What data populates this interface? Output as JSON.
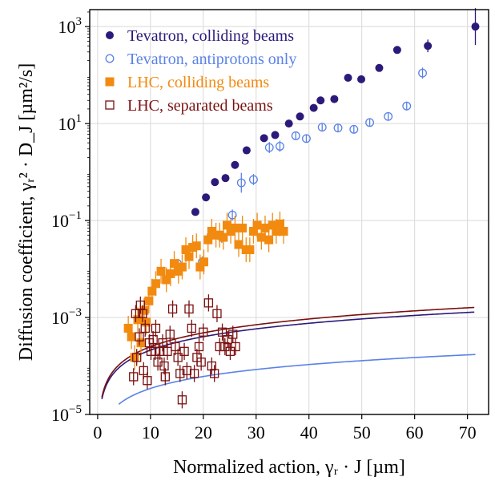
{
  "chart_data": {
    "type": "scatter",
    "xlabel": "Normalized action, γᵣ · J [µm]",
    "ylabel": "Diffusion coefficient, γᵣ² · D_J [µm²/s]",
    "xlim": [
      -1.5,
      74
    ],
    "ylim_log10": [
      -5,
      3.35
    ],
    "yscale": "log",
    "grid": true,
    "legend_position": "top-left",
    "x_ticks": [
      0,
      10,
      20,
      30,
      40,
      50,
      60,
      70
    ],
    "x_tick_labels": [
      "0",
      "10",
      "20",
      "30",
      "40",
      "50",
      "60",
      "70"
    ],
    "y_ticks_log10": [
      -5,
      -3,
      -1,
      1,
      3
    ],
    "y_tick_labels": [
      {
        "base": "10",
        "exp": "−5"
      },
      {
        "base": "10",
        "exp": "−3"
      },
      {
        "base": "10",
        "exp": "−1"
      },
      {
        "base": "10",
        "exp": "1"
      },
      {
        "base": "10",
        "exp": "3"
      }
    ],
    "series": [
      {
        "name": "Tevatron, colliding beams",
        "color": "#2c1a7a",
        "marker": "filled-circle",
        "points": [
          [
            18.5,
            0.15
          ],
          [
            20.5,
            0.3
          ],
          [
            22.2,
            0.62
          ],
          [
            24.2,
            0.75
          ],
          [
            26.0,
            1.4
          ],
          [
            28.2,
            2.8
          ],
          [
            31.5,
            5.0
          ],
          [
            33.6,
            5.8
          ],
          [
            36.2,
            10
          ],
          [
            38.3,
            14
          ],
          [
            40.9,
            21
          ],
          [
            42.2,
            30
          ],
          [
            44.8,
            32
          ],
          [
            47.4,
            88
          ],
          [
            49.9,
            82
          ],
          [
            53.3,
            140
          ],
          [
            56.7,
            330
          ],
          [
            62.5,
            400
          ],
          [
            71.5,
            1000
          ]
        ],
        "errors_up_factor": [
          1,
          1,
          1,
          1,
          1,
          1,
          1,
          1,
          1,
          1,
          1,
          1,
          1,
          1,
          1,
          1,
          1,
          1.35,
          2.4
        ],
        "errors_down_factor": [
          1,
          1,
          1,
          1,
          1,
          1,
          1,
          1,
          1,
          1,
          1,
          1,
          1,
          1,
          1,
          1,
          1,
          1.35,
          2.4
        ]
      },
      {
        "name": "Tevatron, antiprotons only",
        "color": "#5a82e6",
        "marker": "open-circle",
        "points": [
          [
            15.1,
            0.013
          ],
          [
            19.8,
            0.014
          ],
          [
            21.5,
            0.05
          ],
          [
            23.5,
            0.045
          ],
          [
            25.5,
            0.13
          ],
          [
            27.2,
            0.6
          ],
          [
            29.5,
            0.7
          ],
          [
            32.5,
            3.2
          ],
          [
            34.5,
            3.4
          ],
          [
            37.5,
            5.6
          ],
          [
            39.5,
            4.9
          ],
          [
            42.5,
            8.4
          ],
          [
            45.5,
            8.1
          ],
          [
            48.5,
            7.6
          ],
          [
            51.5,
            10.5
          ],
          [
            55,
            14
          ],
          [
            58.5,
            23
          ],
          [
            61.5,
            110
          ]
        ],
        "errors_up_factor": [
          1,
          1.3,
          1.3,
          1.3,
          1.3,
          1.6,
          1.3,
          1.3,
          1.3,
          1.2,
          1.2,
          1.2,
          1.2,
          1.2,
          1.2,
          1.2,
          1.2,
          1.3
        ],
        "errors_down_factor": [
          1,
          1.3,
          1.3,
          1.3,
          1.3,
          1.6,
          1.3,
          1.3,
          1.3,
          1.2,
          1.2,
          1.2,
          1.2,
          1.2,
          1.2,
          1.2,
          1.2,
          1.3
        ]
      },
      {
        "name": "LHC, colliding beams",
        "color": "#f28a10",
        "marker": "filled-square",
        "points": [
          [
            5.8,
            0.0006
          ],
          [
            6.4,
            0.0004
          ],
          [
            7.0,
            0.00015
          ],
          [
            7.6,
            0.0009
          ],
          [
            8.2,
            0.0003
          ],
          [
            8.8,
            0.0014
          ],
          [
            9.2,
            0.0008
          ],
          [
            9.7,
            0.0022
          ],
          [
            10.3,
            0.0035
          ],
          [
            11.0,
            0.005
          ],
          [
            12.0,
            0.009
          ],
          [
            13.0,
            0.006
          ],
          [
            13.8,
            0.008
          ],
          [
            14.5,
            0.013
          ],
          [
            15.3,
            0.009
          ],
          [
            16.0,
            0.011
          ],
          [
            16.7,
            0.025
          ],
          [
            17.3,
            0.018
          ],
          [
            18.0,
            0.028
          ],
          [
            18.7,
            0.03
          ],
          [
            19.4,
            0.011
          ],
          [
            20.1,
            0.014
          ],
          [
            20.9,
            0.04
          ],
          [
            21.6,
            0.06
          ],
          [
            22.4,
            0.05
          ],
          [
            23.1,
            0.05
          ],
          [
            23.8,
            0.045
          ],
          [
            24.5,
            0.08
          ],
          [
            25.2,
            0.06
          ],
          [
            26.0,
            0.07
          ],
          [
            26.7,
            0.032
          ],
          [
            27.4,
            0.07
          ],
          [
            28.1,
            0.025
          ],
          [
            28.8,
            0.025
          ],
          [
            29.5,
            0.06
          ],
          [
            30.2,
            0.08
          ],
          [
            31.0,
            0.045
          ],
          [
            31.7,
            0.07
          ],
          [
            32.4,
            0.04
          ],
          [
            33.1,
            0.08
          ],
          [
            33.8,
            0.06
          ],
          [
            34.5,
            0.085
          ],
          [
            35.2,
            0.06
          ]
        ],
        "error_factor": 1.8
      },
      {
        "name": "LHC, separated beams",
        "color": "#7a1010",
        "marker": "open-square",
        "points": [
          [
            6.8,
            6e-05
          ],
          [
            7.4,
            0.00015
          ],
          [
            7.9,
            0.0004
          ],
          [
            8.1,
            0.0018
          ],
          [
            8.5,
            0.0012
          ],
          [
            9.0,
            0.0006
          ],
          [
            9.4,
            5e-05
          ],
          [
            9.8,
            0.0003
          ],
          [
            10.1,
            0.0002
          ],
          [
            10.5,
            0.00035
          ],
          [
            11.0,
            0.0006
          ],
          [
            11.4,
            0.00012
          ],
          [
            11.8,
            0.0002
          ],
          [
            12.3,
            0.0003
          ],
          [
            12.8,
            6e-05
          ],
          [
            13.2,
            0.0002
          ],
          [
            13.7,
            0.00045
          ],
          [
            14.2,
            0.0015
          ],
          [
            14.7,
            0.00025
          ],
          [
            15.2,
            0.00015
          ],
          [
            15.6,
            7e-05
          ],
          [
            16.0,
            2e-05
          ],
          [
            16.4,
            0.0002
          ],
          [
            16.9,
            8e-05
          ],
          [
            17.3,
            0.0015
          ],
          [
            17.8,
            0.0006
          ],
          [
            18.3,
            7e-05
          ],
          [
            18.8,
            0.00015
          ],
          [
            19.2,
            0.00025
          ],
          [
            19.6,
            0.00012
          ],
          [
            20.0,
            0.0005
          ],
          [
            21.0,
            0.002
          ],
          [
            21.6,
            0.0001
          ],
          [
            22.1,
            7e-05
          ],
          [
            22.6,
            0.0012
          ],
          [
            23.1,
            0.00025
          ],
          [
            23.6,
            0.0005
          ],
          [
            24.1,
            0.00025
          ],
          [
            24.6,
            0.00035
          ],
          [
            25.1,
            0.0002
          ],
          [
            25.6,
            0.00045
          ],
          [
            26.1,
            0.00025
          ],
          [
            7.2,
            0.0012
          ],
          [
            8.7,
            8e-05
          ],
          [
            10.9,
            0.0002
          ],
          [
            12.6,
            0.0001
          ]
        ],
        "error_factor": 1.5
      }
    ],
    "model_curves": [
      {
        "color": "#2c1a7a",
        "coef": 2.55e-05,
        "power": 0.92
      },
      {
        "color": "#7a1010",
        "coef": 2.8e-05,
        "power": 0.95
      },
      {
        "color": "#5a82e6",
        "coef": 5.2e-06,
        "power": 0.82,
        "xmin": 4.0
      }
    ]
  }
}
